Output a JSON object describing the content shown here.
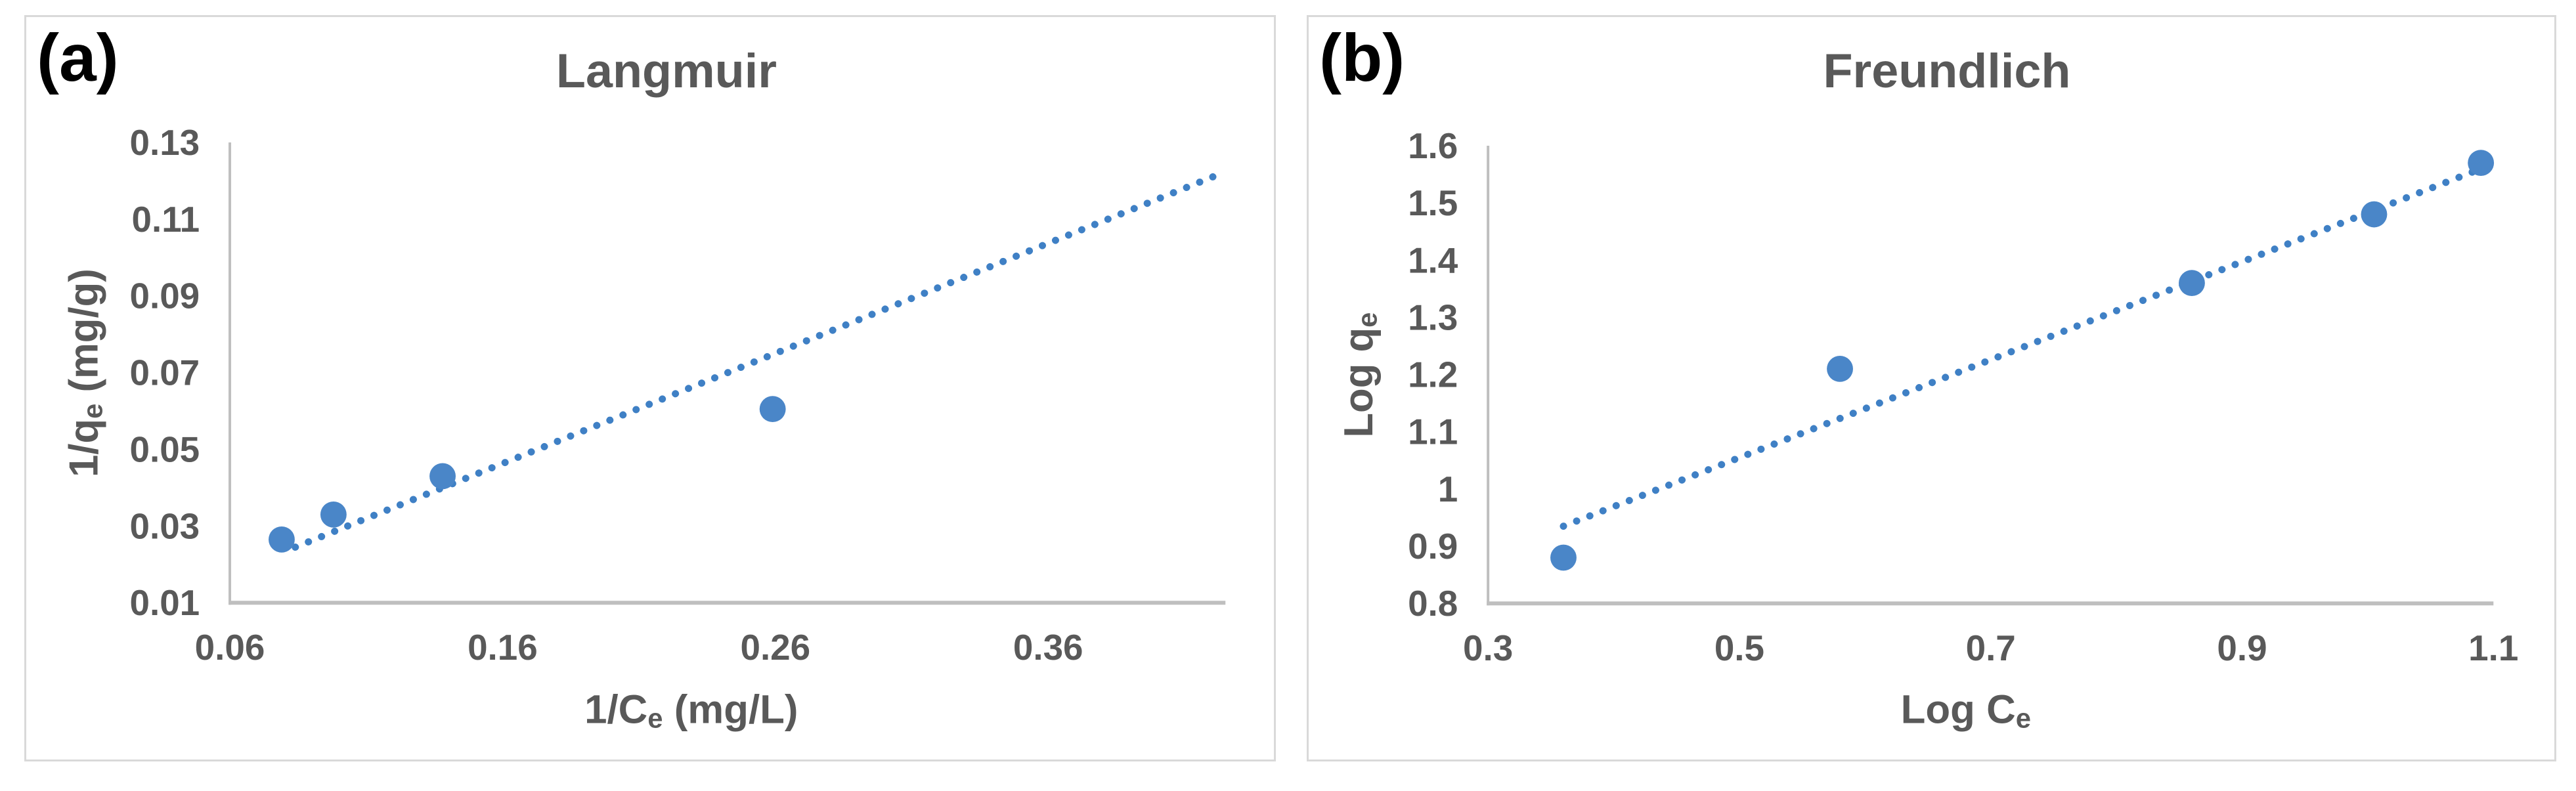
{
  "colors": {
    "marker": "#4a86c8",
    "trendline": "#3f80c5",
    "axis_line": "#bfbfbf",
    "text": "#595959",
    "panel_border": "#d9d9d9",
    "panel_letter": "#000000",
    "background": "#ffffff"
  },
  "chart_data": [
    {
      "type": "scatter",
      "panel_letter": "(a)",
      "title": "Langmuir",
      "xlabel": "1/Ce (mg/L)",
      "xlabel_parts": {
        "pre": "1/C",
        "sub": "e",
        "post": " (mg/L)"
      },
      "ylabel": "1/qe (mg/g)",
      "ylabel_parts": {
        "pre": "1/q",
        "sub": "e",
        "post": " (mg/g)"
      },
      "xlim": [
        0.06,
        0.425
      ],
      "ylim": [
        0.01,
        0.13
      ],
      "grid": false,
      "legend": false,
      "x_ticks": [
        {
          "v": 0.06,
          "t": "0.06"
        },
        {
          "v": 0.16,
          "t": "0.16"
        },
        {
          "v": 0.26,
          "t": "0.26"
        },
        {
          "v": 0.36,
          "t": "0.36"
        }
      ],
      "y_ticks": [
        {
          "v": 0.01,
          "t": "0.01"
        },
        {
          "v": 0.03,
          "t": "0.03"
        },
        {
          "v": 0.05,
          "t": "0.05"
        },
        {
          "v": 0.07,
          "t": "0.07"
        },
        {
          "v": 0.09,
          "t": "0.09"
        },
        {
          "v": 0.11,
          "t": "0.11"
        },
        {
          "v": 0.13,
          "t": "0.13"
        }
      ],
      "points": [
        [
          0.079,
          0.0265
        ],
        [
          0.098,
          0.033
        ],
        [
          0.138,
          0.043
        ],
        [
          0.259,
          0.0605
        ]
      ],
      "trendline": {
        "style": "dotted",
        "x1": 0.084,
        "y1": 0.0245,
        "x2": 0.422,
        "y2": 0.1215
      }
    },
    {
      "type": "scatter",
      "panel_letter": "(b)",
      "title": "Freundlich",
      "xlabel": "Log Ce",
      "xlabel_parts": {
        "pre": "Log C",
        "sub": "e",
        "post": ""
      },
      "ylabel": "Log qe",
      "ylabel_parts": {
        "pre": "Log q",
        "sub": "e",
        "post": ""
      },
      "xlim": [
        0.3,
        1.1
      ],
      "ylim": [
        0.8,
        1.6
      ],
      "grid": false,
      "legend": false,
      "x_ticks": [
        {
          "v": 0.3,
          "t": "0.3"
        },
        {
          "v": 0.5,
          "t": "0.5"
        },
        {
          "v": 0.7,
          "t": "0.7"
        },
        {
          "v": 0.9,
          "t": "0.9"
        },
        {
          "v": 1.1,
          "t": "1.1"
        }
      ],
      "y_ticks": [
        {
          "v": 0.8,
          "t": "0.8"
        },
        {
          "v": 0.9,
          "t": "0.9"
        },
        {
          "v": 1.0,
          "t": "1"
        },
        {
          "v": 1.1,
          "t": "1.1"
        },
        {
          "v": 1.2,
          "t": "1.2"
        },
        {
          "v": 1.3,
          "t": "1.3"
        },
        {
          "v": 1.4,
          "t": "1.4"
        },
        {
          "v": 1.5,
          "t": "1.5"
        },
        {
          "v": 1.6,
          "t": "1.6"
        }
      ],
      "points": [
        [
          0.36,
          0.88
        ],
        [
          0.58,
          1.21
        ],
        [
          0.86,
          1.36
        ],
        [
          1.005,
          1.48
        ],
        [
          1.09,
          1.57
        ]
      ],
      "trendline": {
        "style": "dotted",
        "x1": 0.36,
        "y1": 0.935,
        "x2": 1.088,
        "y2": 1.558
      }
    }
  ]
}
